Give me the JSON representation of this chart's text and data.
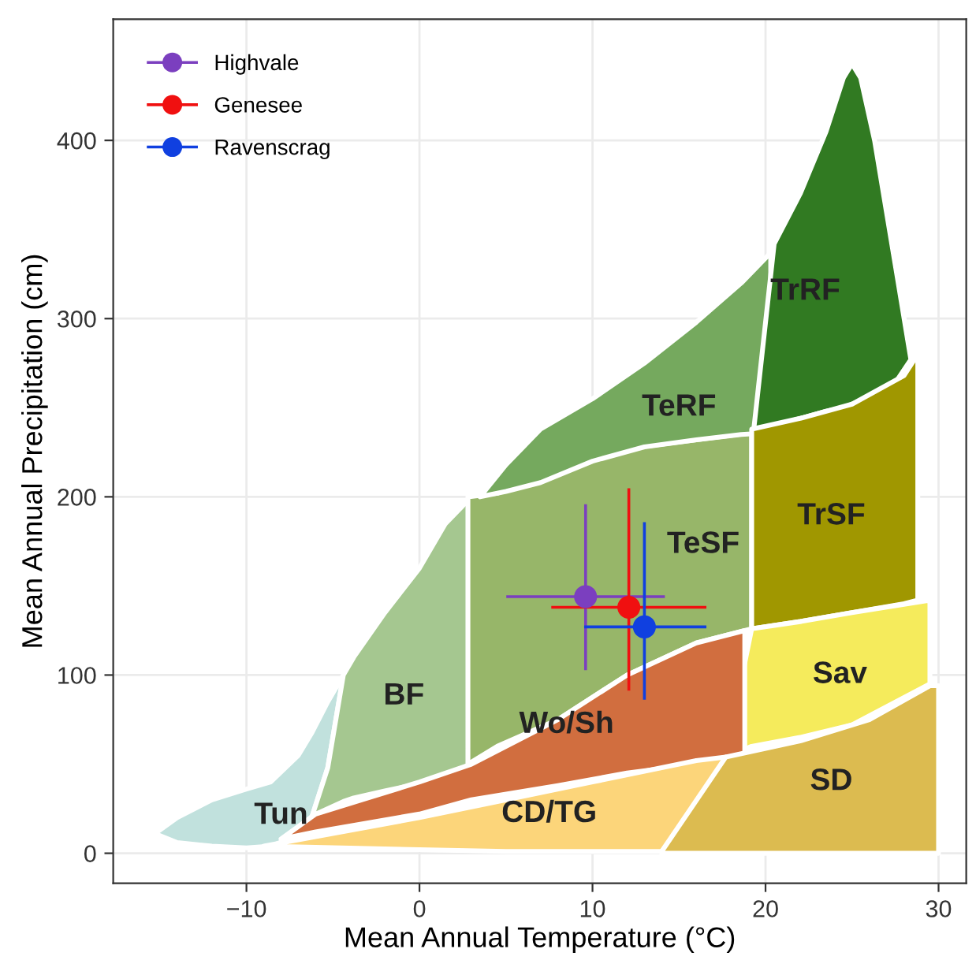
{
  "chart_data": {
    "type": "scatter",
    "xlabel": "Mean Annual Temperature (°C)",
    "ylabel": "Mean Annual Precipitation (cm)",
    "xlim": [
      -17.7,
      31.6
    ],
    "ylim": [
      -16.8,
      468
    ],
    "xticks": [
      -10,
      0,
      10,
      20,
      30
    ],
    "yticks": [
      0,
      100,
      200,
      300,
      400
    ],
    "grid": true,
    "legend": "top left",
    "marker": "circle",
    "series": [
      {
        "name": "Highvale",
        "color": "#7b3fbf",
        "x": [
          9.6
        ],
        "values": [
          144
        ],
        "xerrors": [
          [
            5.1,
            14.1
          ]
        ],
        "errors": [
          [
            103.5,
            195
          ]
        ]
      },
      {
        "name": "Genesee",
        "color": "#f01010",
        "x": [
          12.1
        ],
        "values": [
          138
        ],
        "xerrors": [
          [
            7.7,
            16.5
          ]
        ],
        "errors": [
          [
            92,
            204
          ]
        ]
      },
      {
        "name": "Ravenscrag",
        "color": "#1040e0",
        "x": [
          13.0
        ],
        "values": [
          127
        ],
        "xerrors": [
          [
            9.6,
            16.5
          ]
        ],
        "errors": [
          [
            87,
            185
          ]
        ]
      }
    ],
    "annotations": [
      "Tun",
      "BF",
      "TeSF",
      "TeRF",
      "TrRF",
      "TrSF",
      "Sav",
      "Wo/Sh",
      "CD/TG",
      "SD"
    ]
  }
}
